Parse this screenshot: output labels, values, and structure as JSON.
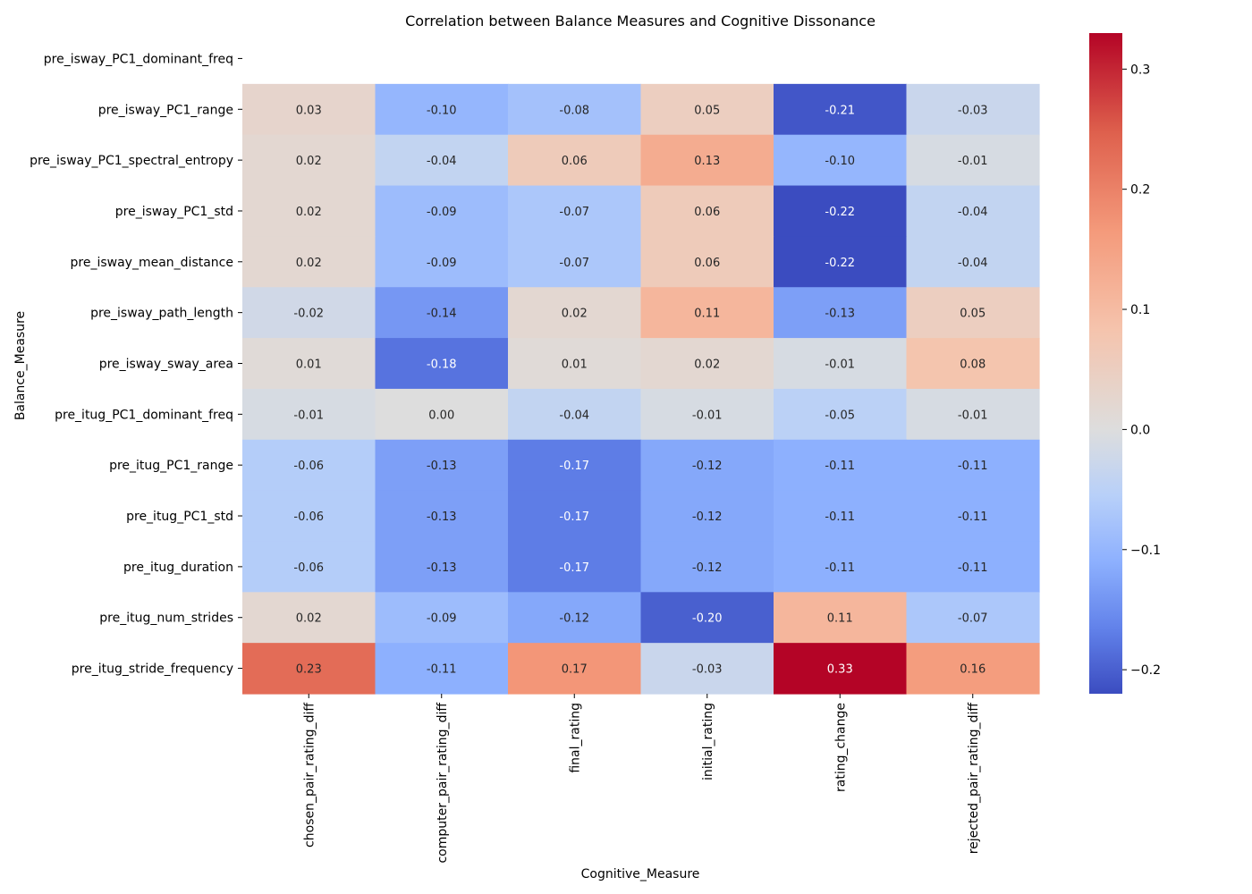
{
  "chart_data": {
    "type": "heatmap",
    "title": "Correlation between Balance Measures and Cognitive Dissonance",
    "xlabel": "Cognitive_Measure",
    "ylabel": "Balance_Measure",
    "x_categories": [
      "chosen_pair_rating_diff",
      "computer_pair_rating_diff",
      "final_rating",
      "initial_rating",
      "rating_change",
      "rejected_pair_rating_diff"
    ],
    "y_categories": [
      "pre_isway_PC1_dominant_freq",
      "pre_isway_PC1_range",
      "pre_isway_PC1_spectral_entropy",
      "pre_isway_PC1_std",
      "pre_isway_mean_distance",
      "pre_isway_path_length",
      "pre_isway_sway_area",
      "pre_itug_PC1_dominant_freq",
      "pre_itug_PC1_range",
      "pre_itug_PC1_std",
      "pre_itug_duration",
      "pre_itug_num_strides",
      "pre_itug_stride_frequency"
    ],
    "values": [
      [
        null,
        null,
        null,
        null,
        null,
        null
      ],
      [
        0.03,
        -0.1,
        -0.08,
        0.05,
        -0.21,
        -0.03
      ],
      [
        0.02,
        -0.04,
        0.06,
        0.13,
        -0.1,
        -0.01
      ],
      [
        0.02,
        -0.09,
        -0.07,
        0.06,
        -0.22,
        -0.04
      ],
      [
        0.02,
        -0.09,
        -0.07,
        0.06,
        -0.22,
        -0.04
      ],
      [
        -0.02,
        -0.14,
        0.02,
        0.11,
        -0.13,
        0.05
      ],
      [
        0.01,
        -0.18,
        0.01,
        0.02,
        -0.01,
        0.08
      ],
      [
        -0.01,
        0.0,
        -0.04,
        -0.01,
        -0.05,
        -0.01
      ],
      [
        -0.06,
        -0.13,
        -0.17,
        -0.12,
        -0.11,
        -0.11
      ],
      [
        -0.06,
        -0.13,
        -0.17,
        -0.12,
        -0.11,
        -0.11
      ],
      [
        -0.06,
        -0.13,
        -0.17,
        -0.12,
        -0.11,
        -0.11
      ],
      [
        0.02,
        -0.09,
        -0.12,
        -0.2,
        0.11,
        -0.07
      ],
      [
        0.23,
        -0.11,
        0.17,
        -0.03,
        0.33,
        0.16
      ]
    ],
    "colormap": "coolwarm",
    "color_center": 0.0,
    "color_range": [
      -0.22,
      0.33
    ],
    "colorbar_ticks": [
      0.3,
      0.2,
      0.1,
      0.0,
      -0.1,
      -0.2
    ],
    "colorbar_tick_labels": [
      "0.3",
      "0.2",
      "0.1",
      "0.0",
      "−0.1",
      "−0.2"
    ],
    "annotation_format": "2 decimals"
  }
}
